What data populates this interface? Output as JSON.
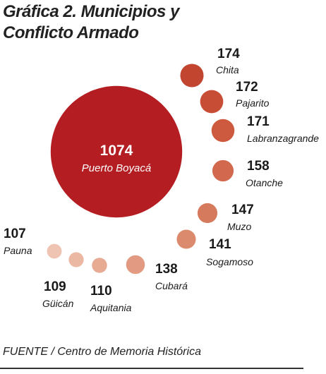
{
  "chart_data": {
    "type": "bubble",
    "title": "Gráfica 2. Municipios y Conflicto Armado",
    "categories": [
      "Puerto Boyacá",
      "Chita",
      "Pajarito",
      "Labranzagrande",
      "Otanche",
      "Muzo",
      "Sogamoso",
      "Cubará",
      "Aquitania",
      "Güicán",
      "Pauna"
    ],
    "values": [
      1074,
      174,
      172,
      171,
      158,
      147,
      141,
      138,
      110,
      109,
      107
    ],
    "colors": [
      "#b41e22",
      "#c2452f",
      "#c84d35",
      "#cd5a3f",
      "#d2694f",
      "#d67a5d",
      "#dc8a6e",
      "#e29b82",
      "#e7ab94",
      "#ebb8a4",
      "#efc4b3"
    ],
    "source": "FUENTE / Centro de Memoria Histórica"
  }
}
